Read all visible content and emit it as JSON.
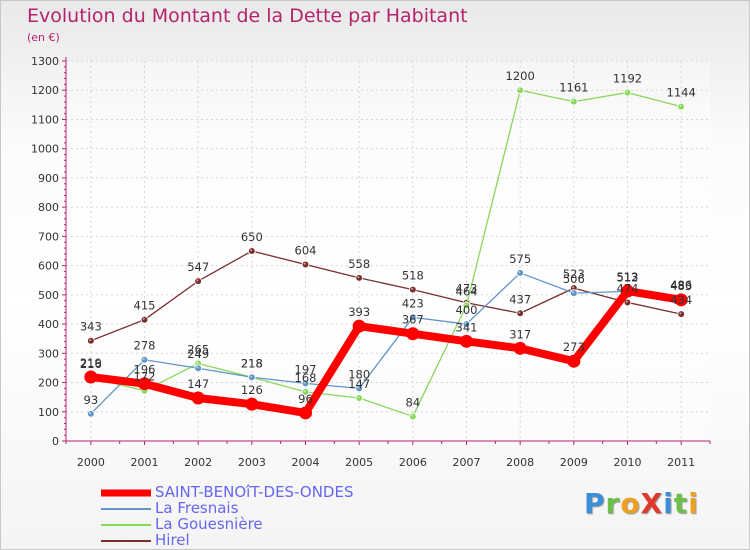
{
  "title": "Evolution du Montant de la Dette par Habitant",
  "subtitle": "(en €)",
  "logo": {
    "letters": [
      {
        "ch": "P",
        "color": "#3a8fd8"
      },
      {
        "ch": "r",
        "color": "#6cc04a"
      },
      {
        "ch": "o",
        "color": "#f0a020"
      },
      {
        "ch": "X",
        "color": "#e0382a"
      },
      {
        "ch": "i",
        "color": "#3a8fd8"
      },
      {
        "ch": "t",
        "color": "#6cc04a"
      },
      {
        "ch": "i",
        "color": "#f0a020"
      }
    ]
  },
  "chart_data": {
    "type": "line",
    "title": "Evolution du Montant de la Dette par Habitant",
    "subtitle": "(en €)",
    "x": [
      "2000",
      "2001",
      "2002",
      "2003",
      "2004",
      "2005",
      "2006",
      "2007",
      "2008",
      "2009",
      "2010",
      "2011"
    ],
    "ylim": [
      0,
      1300
    ],
    "yticks": [
      0,
      100,
      200,
      300,
      400,
      500,
      600,
      700,
      800,
      900,
      1000,
      1100,
      1200,
      1300
    ],
    "grid": true,
    "legend_position": "bottom-left",
    "series": [
      {
        "name": "SAINT-BENOîT-DES-ONDES",
        "color": "#ff0000",
        "emphasis": true,
        "values": [
          219,
          196,
          147,
          126,
          96,
          393,
          367,
          341,
          317,
          273,
          513,
          483
        ],
        "labels": [
          "219",
          "196",
          "147",
          "126",
          "96",
          "393",
          "367",
          "341",
          "317",
          "273",
          "513",
          "483"
        ]
      },
      {
        "name": "La Fresnais",
        "color": "#5f95c9",
        "values": [
          93,
          278,
          249,
          218,
          197,
          180,
          423,
          400,
          575,
          506,
          512,
          486
        ],
        "labels": [
          "93",
          "278",
          "249",
          "218",
          "197",
          "180",
          "423",
          "400",
          "575",
          "506",
          "512",
          "486"
        ]
      },
      {
        "name": "La Gouesnière",
        "color": "#88d85a",
        "values": [
          216,
          172,
          265,
          218,
          168,
          147,
          84,
          464,
          1200,
          1161,
          1192,
          1144
        ],
        "labels": [
          "216",
          "172",
          "265",
          "218",
          "168",
          "147",
          "84",
          "464",
          "1200",
          "1161",
          "1192",
          "1144"
        ]
      },
      {
        "name": "Hirel",
        "color": "#7a2e2e",
        "values": [
          343,
          415,
          547,
          650,
          604,
          558,
          518,
          473,
          437,
          523,
          474,
          434
        ],
        "labels": [
          "343",
          "415",
          "547",
          "650",
          "604",
          "558",
          "518",
          "473",
          "437",
          "523",
          "474",
          "434"
        ]
      }
    ]
  }
}
